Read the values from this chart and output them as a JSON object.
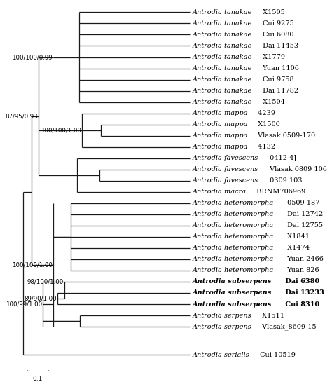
{
  "taxa": [
    {
      "italic": "Antrodia tanakae",
      "normal": "X1505",
      "bold": false
    },
    {
      "italic": "Antrodia tanakae",
      "normal": "Cui 9275",
      "bold": false
    },
    {
      "italic": "Antrodia tanakae",
      "normal": "Cui 6080",
      "bold": false
    },
    {
      "italic": "Antrodia tanakae",
      "normal": "Dai 11453",
      "bold": false
    },
    {
      "italic": "Antrodia tanakae",
      "normal": "X1779",
      "bold": false
    },
    {
      "italic": "Antrodia tanakae",
      "normal": "Yuan 1106",
      "bold": false
    },
    {
      "italic": "Antrodia tanakae",
      "normal": "Cui 9758",
      "bold": false
    },
    {
      "italic": "Antrodia tanakae",
      "normal": "Dai 11782",
      "bold": false
    },
    {
      "italic": "Antrodia tanakae",
      "normal": "X1504",
      "bold": false
    },
    {
      "italic": "Antrodia mappa",
      "normal": "4239",
      "bold": false
    },
    {
      "italic": "Antrodia mappa",
      "normal": "X1500",
      "bold": false
    },
    {
      "italic": "Antrodia mappa",
      "normal": "Vlasak 0509-170",
      "bold": false
    },
    {
      "italic": "Antrodia mappa",
      "normal": "4132",
      "bold": false
    },
    {
      "italic": "Antrodia favescens",
      "normal": "0412 4J",
      "bold": false
    },
    {
      "italic": "Antrodia favescens",
      "normal": "Vlasak 0809 106",
      "bold": false
    },
    {
      "italic": "Antrodia favescens",
      "normal": "0309 103",
      "bold": false
    },
    {
      "italic": "Antrodia macra",
      "normal": "BRNM706969",
      "bold": false
    },
    {
      "italic": "Antrodia heteromorpha",
      "normal": "0509 187",
      "bold": false
    },
    {
      "italic": "Antrodia heteromorpha",
      "normal": "Dai 12742",
      "bold": false
    },
    {
      "italic": "Antrodia heteromorpha",
      "normal": "Dai 12755",
      "bold": false
    },
    {
      "italic": "Antrodia heteromorpha",
      "normal": "X1841",
      "bold": false
    },
    {
      "italic": "Antrodia heteromorpha",
      "normal": "X1474",
      "bold": false
    },
    {
      "italic": "Antrodia heteromorpha",
      "normal": "Yuan 2466",
      "bold": false
    },
    {
      "italic": "Antrodia heteromorpha",
      "normal": "Yuan 826",
      "bold": false
    },
    {
      "italic": "Antrodia subserpens",
      "normal": "Dai 6380",
      "bold": true
    },
    {
      "italic": "Antrodia subserpens",
      "normal": "Dai 13233",
      "bold": true
    },
    {
      "italic": "Antrodia subserpens",
      "normal": "Cui 8310",
      "bold": true
    },
    {
      "italic": "Antrodia serpens",
      "normal": "X1511",
      "bold": false
    },
    {
      "italic": "Antrodia serpens",
      "normal": "Vlasak_8609-15",
      "bold": false
    }
  ],
  "outgroup_italic": "Antrodia serialis",
  "outgroup_normal": "Cui 10519",
  "node_labels": [
    {
      "label": "100/100/0.99",
      "side": "left"
    },
    {
      "label": "100/100/1.00",
      "side": "left"
    },
    {
      "label": "87/95/0.93",
      "side": "left"
    },
    {
      "label": "100/100/1.00",
      "side": "left"
    },
    {
      "label": "98/100/1.00",
      "side": "left"
    },
    {
      "label": "89/90/1.00",
      "side": "left"
    },
    {
      "label": "100/99/1.00",
      "side": "left"
    }
  ],
  "scale_label": "0.1",
  "line_color": "#1a1a1a",
  "bg_color": "#ffffff",
  "fig_width": 4.74,
  "fig_height": 5.45,
  "dpi": 100
}
